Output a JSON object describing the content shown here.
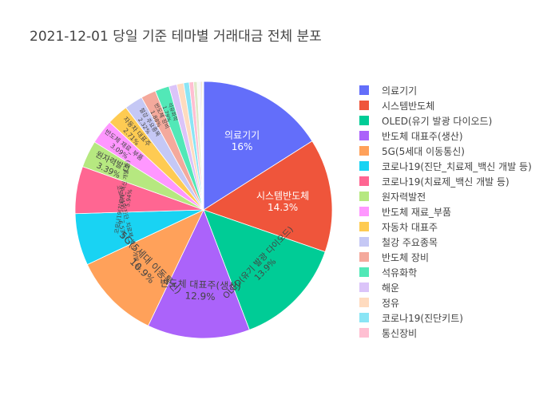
{
  "chart_data": {
    "type": "pie",
    "title": "2021-12-01 당일 기준 테마별 거래대금 전체 분포",
    "labels": [
      "의료기기",
      "시스템반도체",
      "OLED(유기 발광 다이오드)",
      "반도체 대표주(생산)",
      "5G(5세대 이동통신)",
      "코로나19(진단_치료제_백신 개발 등)",
      "코로나19(치료제_백신 개발 등)",
      "원자력발전",
      "반도체 재료_부품",
      "자동차 대표주",
      "철강 주요종목",
      "반도체 장비",
      "석유화학",
      "해운",
      "정유",
      "코로나19(진단키트)",
      "통신장비"
    ],
    "values": [
      16,
      14.3,
      13.9,
      12.9,
      10.9,
      6.53,
      5.94,
      3.39,
      3.09,
      2.71,
      2.32,
      1.88,
      1.79,
      1.0,
      0.85,
      0.7,
      0.55
    ],
    "text": [
      "16%",
      "14.3%",
      "13.9%",
      "12.9%",
      "10.9%",
      "6.53%",
      "5.94%",
      "3.39%",
      "3.09%",
      "2.71%",
      "2.32%",
      "1.88%",
      "1.79%",
      "",
      "",
      "",
      ""
    ],
    "colors": [
      "#636efa",
      "#EF553B",
      "#00cc96",
      "#ab63fa",
      "#FFA15A",
      "#19d3f3",
      "#FF6692",
      "#B6E880",
      "#FF97FF",
      "#FECB52",
      "#c5c8f5",
      "#f4a99c",
      "#52e8b7",
      "#dbc4f9",
      "#ffdbbf",
      "#8ae5f5",
      "#ffbfd2"
    ],
    "extra_colors": [
      "#dfe9c8",
      "#f7f7f7",
      "#e8e1f2",
      "#f3e0b0",
      "#d0d8f0",
      "#2f2f2f"
    ],
    "legend_placement": "right",
    "sort": "descending"
  }
}
